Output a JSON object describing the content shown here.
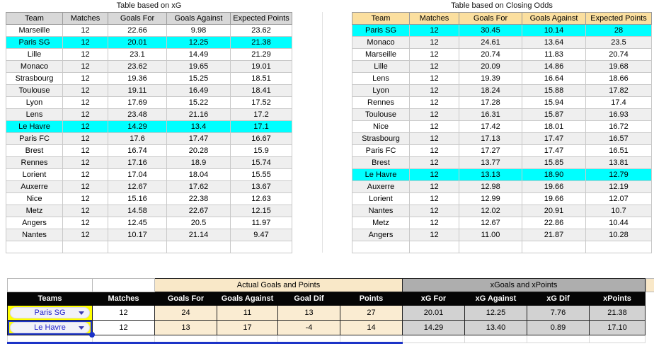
{
  "colors": {
    "highlight_cyan": "#00ffff",
    "banding_gray": "#efefef",
    "xg_header_gray": "#d8d8d8",
    "odds_header_tan": "#fbdf9f",
    "actual_band_cream": "#f9e8c8",
    "actual_cell_cream": "#faecd2",
    "xpoints_band_gray": "#aeaeae",
    "xpoints_cell_gray": "#d2d2d2",
    "team_cell_yellow": "#ffff00",
    "selection_blue": "#1c33c7",
    "dropdown_text_blue": "#2222cc"
  },
  "tables": {
    "xg": {
      "title": "Table based on xG",
      "headers": [
        "Team",
        "Matches",
        "Goals For",
        "Goals Against",
        "Expected Points"
      ],
      "rows": [
        [
          "Marseille",
          "12",
          "22.66",
          "9.98",
          "23.62"
        ],
        [
          "Paris SG",
          "12",
          "20.01",
          "12.25",
          "21.38"
        ],
        [
          "Lille",
          "12",
          "23.1",
          "14.49",
          "21.29"
        ],
        [
          "Monaco",
          "12",
          "23.62",
          "19.65",
          "19.01"
        ],
        [
          "Strasbourg",
          "12",
          "19.36",
          "15.25",
          "18.51"
        ],
        [
          "Toulouse",
          "12",
          "19.11",
          "16.49",
          "18.41"
        ],
        [
          "Lyon",
          "12",
          "17.69",
          "15.22",
          "17.52"
        ],
        [
          "Lens",
          "12",
          "23.48",
          "21.16",
          "17.2"
        ],
        [
          "Le Havre",
          "12",
          "14.29",
          "13.4",
          "17.1"
        ],
        [
          "Paris FC",
          "12",
          "17.6",
          "17.47",
          "16.67"
        ],
        [
          "Brest",
          "12",
          "16.74",
          "20.28",
          "15.9"
        ],
        [
          "Rennes",
          "12",
          "17.16",
          "18.9",
          "15.74"
        ],
        [
          "Lorient",
          "12",
          "17.04",
          "18.04",
          "15.55"
        ],
        [
          "Auxerre",
          "12",
          "12.67",
          "17.62",
          "13.67"
        ],
        [
          "Nice",
          "12",
          "15.16",
          "22.38",
          "12.63"
        ],
        [
          "Metz",
          "12",
          "14.58",
          "22.67",
          "12.15"
        ],
        [
          "Angers",
          "12",
          "12.45",
          "20.5",
          "11.97"
        ],
        [
          "Nantes",
          "12",
          "10.17",
          "21.14",
          "9.47"
        ]
      ],
      "highlight_rows": [
        1,
        8
      ]
    },
    "closing_odds": {
      "title": "Table based on Closing Odds",
      "headers": [
        "Team",
        "Matches",
        "Goals For",
        "Goals Against",
        "Expected Points"
      ],
      "rows": [
        [
          "Paris SG",
          "12",
          "30.45",
          "10.14",
          "28"
        ],
        [
          "Monaco",
          "12",
          "24.61",
          "13.64",
          "23.5"
        ],
        [
          "Marseille",
          "12",
          "20.74",
          "11.83",
          "20.74"
        ],
        [
          "Lille",
          "12",
          "20.09",
          "14.86",
          "19.68"
        ],
        [
          "Lens",
          "12",
          "19.39",
          "16.64",
          "18.66"
        ],
        [
          "Lyon",
          "12",
          "18.24",
          "15.88",
          "17.82"
        ],
        [
          "Rennes",
          "12",
          "17.28",
          "15.94",
          "17.4"
        ],
        [
          "Toulouse",
          "12",
          "16.31",
          "15.87",
          "16.93"
        ],
        [
          "Nice",
          "12",
          "17.42",
          "18.01",
          "16.72"
        ],
        [
          "Strasbourg",
          "12",
          "17.13",
          "17.47",
          "16.57"
        ],
        [
          "Paris FC",
          "12",
          "17.27",
          "17.47",
          "16.51"
        ],
        [
          "Brest",
          "12",
          "13.77",
          "15.85",
          "13.81"
        ],
        [
          "Le Havre",
          "12",
          "13.13",
          "18.90",
          "12.79"
        ],
        [
          "Auxerre",
          "12",
          "12.98",
          "19.66",
          "12.19"
        ],
        [
          "Lorient",
          "12",
          "12.99",
          "19.66",
          "12.07"
        ],
        [
          "Nantes",
          "12",
          "12.02",
          "20.91",
          "10.7"
        ],
        [
          "Metz",
          "12",
          "12.67",
          "22.86",
          "10.44"
        ],
        [
          "Angers",
          "12",
          "11.00",
          "21.87",
          "10.28"
        ]
      ],
      "highlight_rows": [
        0,
        12
      ]
    }
  },
  "bottom": {
    "group_headers": {
      "actual": "Actual Goals and Points",
      "expected": "xGoals and xPoints"
    },
    "headers": [
      "Teams",
      "Matches",
      "Goals For",
      "Goals Against",
      "Goal Dif",
      "Points",
      "xG For",
      "xG Against",
      "xG Dif",
      "xPoints"
    ],
    "rows": [
      {
        "team": "Paris SG",
        "values": [
          "12",
          "24",
          "11",
          "13",
          "27",
          "20.01",
          "12.25",
          "7.76",
          "21.38"
        ]
      },
      {
        "team": "Le Havre",
        "values": [
          "12",
          "13",
          "17",
          "-4",
          "14",
          "14.29",
          "13.40",
          "0.89",
          "17.10"
        ]
      }
    ],
    "selected_team_row": 1
  }
}
